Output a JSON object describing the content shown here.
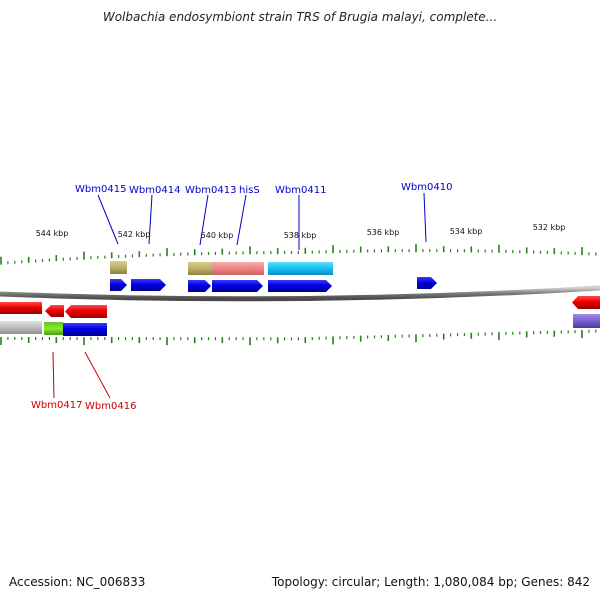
{
  "title": "Wolbachia endosymbiont strain TRS of Brugia malayi, complete...",
  "footer": {
    "accession": "Accession: NC_006833",
    "stats": "Topology: circular; Length: 1,080,084 bp; Genes: 842"
  },
  "colors": {
    "forward_label": "#0000cc",
    "reverse_label": "#cc0000",
    "tick": "#2a7f1f",
    "backbone": "#8c8c8c"
  },
  "ruler": {
    "unit": "kbp",
    "major_ticks": [
      {
        "kbp": 544,
        "label": "544 kbp"
      },
      {
        "kbp": 542,
        "label": "542 kbp"
      },
      {
        "kbp": 540,
        "label": "540 kbp"
      },
      {
        "kbp": 538,
        "label": "538 kbp"
      },
      {
        "kbp": 536,
        "label": "536 kbp"
      },
      {
        "kbp": 534,
        "label": "534 kbp"
      },
      {
        "kbp": 532,
        "label": "532 kbp"
      }
    ]
  },
  "genes_forward": [
    {
      "name": "Wbm0415",
      "start_kbp": 542.4,
      "end_kbp": 542.0
    },
    {
      "name": "Wbm0414",
      "start_kbp": 541.8,
      "end_kbp": 540.9
    },
    {
      "name": "Wbm0413",
      "start_kbp": 540.6,
      "end_kbp": 540.0
    },
    {
      "name": "hisS",
      "start_kbp": 540.0,
      "end_kbp": 538.7
    },
    {
      "name": "Wbm0411",
      "start_kbp": 538.5,
      "end_kbp": 536.9
    },
    {
      "name": "Wbm0410",
      "start_kbp": 534.7,
      "end_kbp": 534.2
    }
  ],
  "genes_reverse": [
    {
      "name": "Wbm0417",
      "start_kbp": 544.2,
      "end_kbp": 543.6
    },
    {
      "name": "Wbm0416",
      "start_kbp": 543.6,
      "end_kbp": 542.5
    }
  ]
}
